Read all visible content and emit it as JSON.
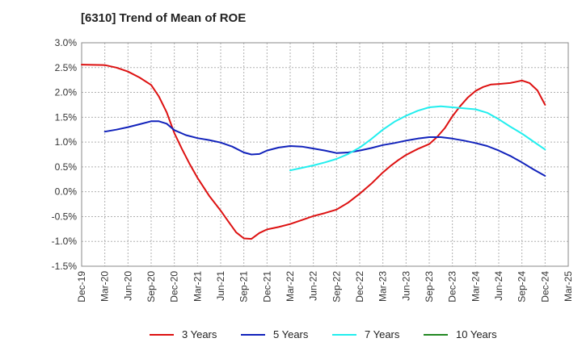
{
  "chart_data": {
    "type": "line",
    "title": "[6310]  Trend of Mean of ROE",
    "xlabel": "",
    "ylabel": "",
    "x_tick_labels": [
      "Dec-19",
      "Mar-20",
      "Jun-20",
      "Sep-20",
      "Dec-20",
      "Mar-21",
      "Jun-21",
      "Sep-21",
      "Dec-21",
      "Mar-22",
      "Jun-22",
      "Sep-22",
      "Dec-22",
      "Mar-23",
      "Jun-23",
      "Sep-23",
      "Dec-23",
      "Mar-24",
      "Jun-24",
      "Sep-24",
      "Dec-24",
      "Mar-25"
    ],
    "y_tick_labels": [
      "3.0%",
      "2.5%",
      "2.0%",
      "1.5%",
      "1.0%",
      "0.5%",
      "0.0%",
      "-0.5%",
      "-1.0%",
      "-1.5%"
    ],
    "ylim": [
      -1.5,
      3.0
    ],
    "y_ticks": [
      3.0,
      2.5,
      2.0,
      1.5,
      1.0,
      0.5,
      0.0,
      -0.5,
      -1.0,
      -1.5
    ],
    "grid": "dashed vertical and horizontal",
    "legend_position": "bottom",
    "series": [
      {
        "name": "3 Years",
        "color": "#dd1111",
        "points": [
          [
            0,
            2.56
          ],
          [
            1,
            2.55
          ],
          [
            1.5,
            2.5
          ],
          [
            2,
            2.42
          ],
          [
            2.5,
            2.3
          ],
          [
            3,
            2.15
          ],
          [
            3.33,
            1.92
          ],
          [
            3.67,
            1.6
          ],
          [
            4,
            1.18
          ],
          [
            4.33,
            0.86
          ],
          [
            4.67,
            0.55
          ],
          [
            5,
            0.28
          ],
          [
            5.5,
            -0.08
          ],
          [
            6,
            -0.38
          ],
          [
            6.33,
            -0.6
          ],
          [
            6.67,
            -0.82
          ],
          [
            7,
            -0.94
          ],
          [
            7.33,
            -0.95
          ],
          [
            7.67,
            -0.83
          ],
          [
            8,
            -0.76
          ],
          [
            8.5,
            -0.71
          ],
          [
            9,
            -0.65
          ],
          [
            9.5,
            -0.57
          ],
          [
            10,
            -0.49
          ],
          [
            10.5,
            -0.43
          ],
          [
            11,
            -0.36
          ],
          [
            11.5,
            -0.22
          ],
          [
            12,
            -0.04
          ],
          [
            12.5,
            0.16
          ],
          [
            13,
            0.39
          ],
          [
            13.33,
            0.52
          ],
          [
            13.67,
            0.64
          ],
          [
            14,
            0.74
          ],
          [
            14.5,
            0.86
          ],
          [
            15,
            0.96
          ],
          [
            15.33,
            1.1
          ],
          [
            15.67,
            1.28
          ],
          [
            16,
            1.52
          ],
          [
            16.33,
            1.72
          ],
          [
            16.67,
            1.9
          ],
          [
            17,
            2.03
          ],
          [
            17.33,
            2.11
          ],
          [
            17.67,
            2.16
          ],
          [
            18,
            2.17
          ],
          [
            18.5,
            2.19
          ],
          [
            19,
            2.24
          ],
          [
            19.33,
            2.19
          ],
          [
            19.67,
            2.04
          ],
          [
            20,
            1.75
          ]
        ]
      },
      {
        "name": "5 Years",
        "color": "#1122bb",
        "points": [
          [
            1,
            1.21
          ],
          [
            1.5,
            1.25
          ],
          [
            2,
            1.3
          ],
          [
            2.5,
            1.36
          ],
          [
            3,
            1.42
          ],
          [
            3.33,
            1.42
          ],
          [
            3.67,
            1.37
          ],
          [
            4,
            1.24
          ],
          [
            4.5,
            1.14
          ],
          [
            5,
            1.08
          ],
          [
            5.5,
            1.04
          ],
          [
            6,
            0.99
          ],
          [
            6.5,
            0.91
          ],
          [
            7,
            0.79
          ],
          [
            7.33,
            0.75
          ],
          [
            7.67,
            0.76
          ],
          [
            8,
            0.83
          ],
          [
            8.5,
            0.89
          ],
          [
            9,
            0.92
          ],
          [
            9.5,
            0.91
          ],
          [
            10,
            0.87
          ],
          [
            10.5,
            0.83
          ],
          [
            11,
            0.78
          ],
          [
            11.5,
            0.79
          ],
          [
            12,
            0.83
          ],
          [
            12.5,
            0.88
          ],
          [
            13,
            0.94
          ],
          [
            13.5,
            0.98
          ],
          [
            14,
            1.03
          ],
          [
            14.5,
            1.07
          ],
          [
            15,
            1.1
          ],
          [
            15.5,
            1.1
          ],
          [
            16,
            1.07
          ],
          [
            16.5,
            1.03
          ],
          [
            17,
            0.98
          ],
          [
            17.5,
            0.92
          ],
          [
            18,
            0.83
          ],
          [
            18.5,
            0.72
          ],
          [
            19,
            0.59
          ],
          [
            19.5,
            0.45
          ],
          [
            20,
            0.32
          ]
        ]
      },
      {
        "name": "7 Years",
        "color": "#22eeee",
        "points": [
          [
            9,
            0.43
          ],
          [
            9.5,
            0.48
          ],
          [
            10,
            0.53
          ],
          [
            10.5,
            0.59
          ],
          [
            11,
            0.66
          ],
          [
            11.5,
            0.76
          ],
          [
            12,
            0.89
          ],
          [
            12.5,
            1.06
          ],
          [
            13,
            1.25
          ],
          [
            13.5,
            1.41
          ],
          [
            14,
            1.53
          ],
          [
            14.5,
            1.63
          ],
          [
            15,
            1.7
          ],
          [
            15.5,
            1.72
          ],
          [
            16,
            1.7
          ],
          [
            16.5,
            1.68
          ],
          [
            17,
            1.66
          ],
          [
            17.5,
            1.59
          ],
          [
            18,
            1.46
          ],
          [
            18.5,
            1.31
          ],
          [
            19,
            1.17
          ],
          [
            19.5,
            1.01
          ],
          [
            20,
            0.85
          ]
        ]
      },
      {
        "name": "10 Years",
        "color": "#228822",
        "points": []
      }
    ]
  }
}
